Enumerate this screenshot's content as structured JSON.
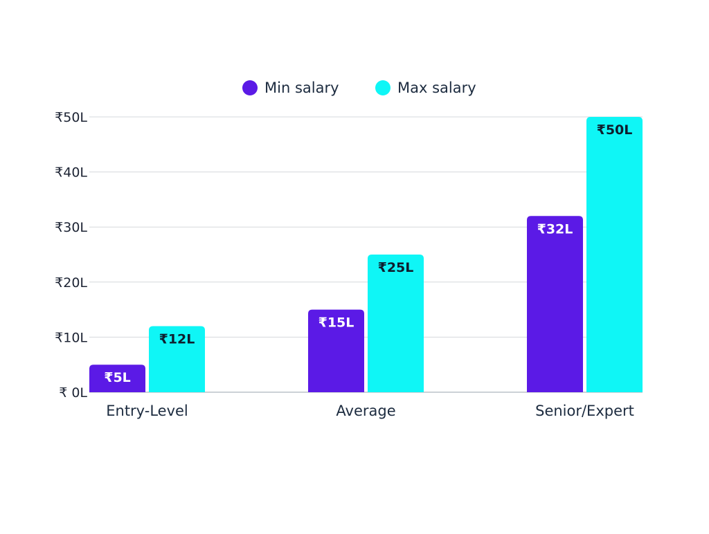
{
  "chart_data": {
    "type": "bar",
    "title": "",
    "xlabel": "",
    "ylabel": "",
    "categories": [
      "Entry-Level",
      "Average",
      "Senior/Expert"
    ],
    "series": [
      {
        "name": "Min salary",
        "values": [
          5,
          15,
          32
        ],
        "color": "#5b1ae6",
        "label_color": "#ffffff"
      },
      {
        "name": "Max salary",
        "values": [
          12,
          25,
          50
        ],
        "color": "#0ff6f6",
        "label_color": "#0f1e2e"
      }
    ],
    "ylim": [
      0,
      50
    ],
    "yticks": [
      0,
      10,
      20,
      30,
      40,
      50
    ],
    "ytick_labels": [
      "₹ 0L",
      "₹10L",
      "₹20L",
      "₹30L",
      "₹40L",
      "₹50L"
    ],
    "data_labels": [
      [
        "₹5L",
        "₹15L",
        "₹32L"
      ],
      [
        "₹12L",
        "₹25L",
        "₹50L"
      ]
    ],
    "grid": true,
    "legend_position": "top-center"
  }
}
